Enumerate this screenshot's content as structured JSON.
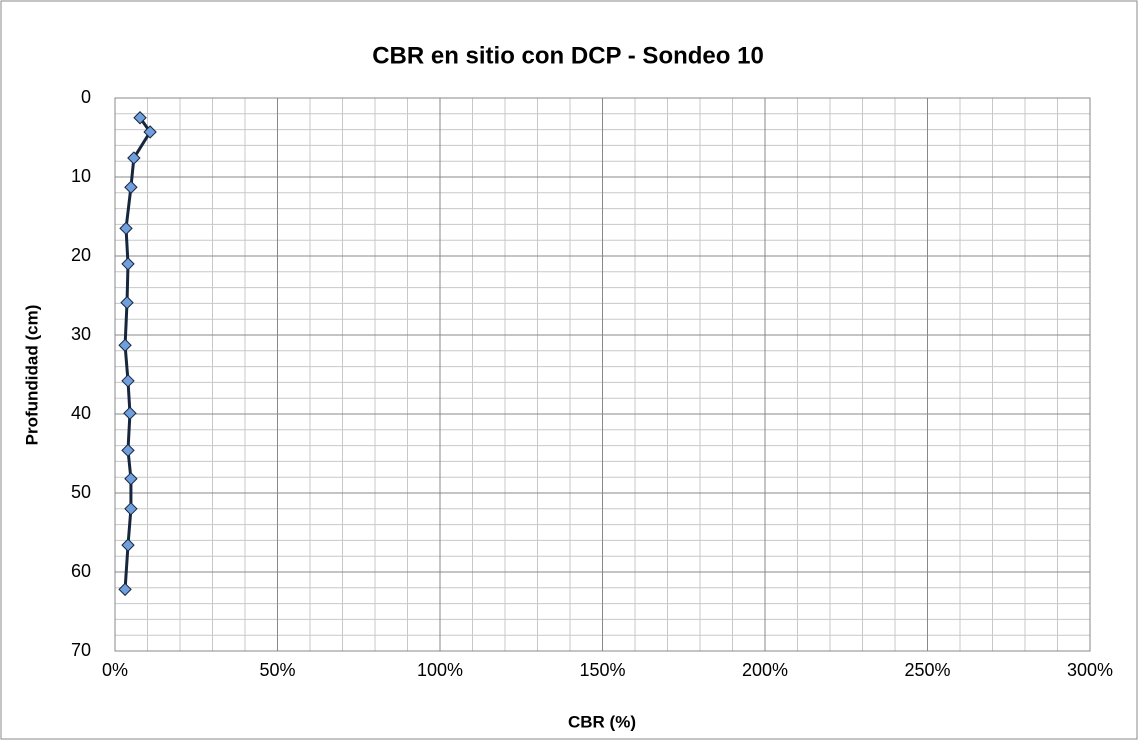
{
  "chart_data": {
    "type": "line",
    "title": "CBR en sitio con DCP - Sondeo 10",
    "xlabel": "CBR (%)",
    "ylabel": "Profundidad (cm)",
    "series": [
      {
        "name": "Sondeo 10",
        "color": "#17253d",
        "marker_color": "#6f9fdc",
        "x": [
          7.7,
          10.8,
          5.8,
          4.9,
          3.4,
          4.0,
          3.7,
          3.1,
          4.0,
          4.6,
          4.0,
          4.9,
          4.9,
          4.0,
          3.1
        ],
        "values": [
          2.5,
          4.3,
          7.6,
          11.3,
          16.5,
          21.0,
          25.9,
          31.3,
          35.8,
          39.9,
          44.6,
          48.2,
          52.0,
          56.6,
          62.2
        ]
      }
    ],
    "xlim": [
      0,
      300
    ],
    "xticks": [
      {
        "value": 0,
        "label": "0%"
      },
      {
        "value": 50,
        "label": "50%"
      },
      {
        "value": 100,
        "label": "100%"
      },
      {
        "value": 150,
        "label": "150%"
      },
      {
        "value": 200,
        "label": "200%"
      },
      {
        "value": 250,
        "label": "250%"
      },
      {
        "value": 300,
        "label": "300%"
      }
    ],
    "ylim": [
      0,
      70
    ],
    "yticks": [
      0,
      10,
      20,
      30,
      40,
      50,
      60,
      70
    ],
    "y_inverted": true,
    "grid": true,
    "minor_grid_step": {
      "x": 10,
      "y": 2
    }
  }
}
